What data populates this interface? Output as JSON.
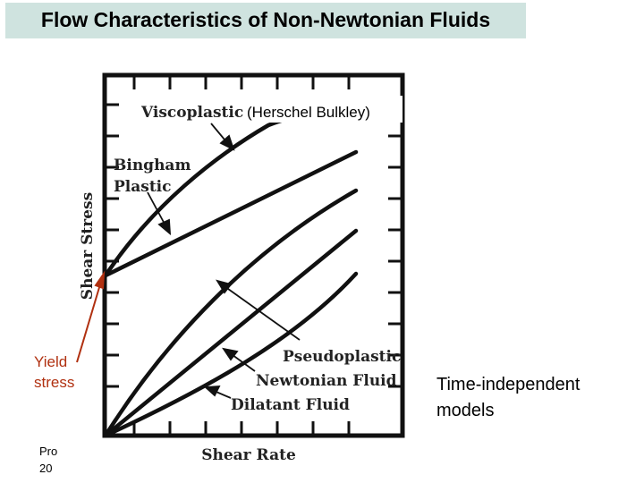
{
  "slide": {
    "title": "Flow Characteristics of Non-Newtonian Fluids"
  },
  "diagram": {
    "axis_y_label": "Shear Stress",
    "axis_x_label": "Shear Rate",
    "labels": {
      "viscoplastic": "Viscoplastic",
      "herschel_bulkley": "(Herschel Bulkley)",
      "bingham_line1": "Bingham",
      "bingham_line2": "Plastic",
      "pseudoplastic": "Pseudoplastic",
      "newtonian": "Newtonian Fluid",
      "dilatant": "Dilatant Fluid"
    }
  },
  "notes": {
    "yield_line1": "Yield",
    "yield_line2": "stress",
    "time_independent_line1": "Time-independent",
    "time_independent_line2": "models",
    "footer_line1": "Pro",
    "footer_line2": "20"
  },
  "colors": {
    "title_background": "#cfe3df",
    "yield_annotation": "#b03010",
    "plot_ink": "#111111"
  }
}
